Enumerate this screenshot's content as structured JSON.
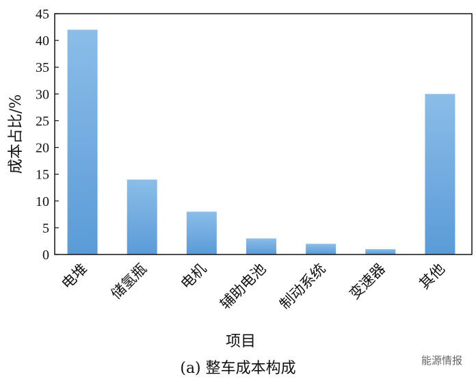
{
  "chart_data": {
    "type": "bar",
    "categories": [
      "电堆",
      "储氢瓶",
      "电机",
      "辅助电池",
      "制动系统",
      "变速器",
      "其他"
    ],
    "values": [
      42,
      14,
      8,
      3,
      2,
      1,
      30
    ],
    "xlabel": "项目",
    "ylabel": "成本占比/%",
    "ylim": [
      0,
      45
    ],
    "yticks": [
      0,
      5,
      10,
      15,
      20,
      25,
      30,
      35,
      40,
      45
    ],
    "grid": false,
    "bar_color_top": "#8bbde8",
    "bar_color_bottom": "#5a9bd8"
  },
  "caption": "(a) 整车成本构成",
  "watermark": "能源情报"
}
